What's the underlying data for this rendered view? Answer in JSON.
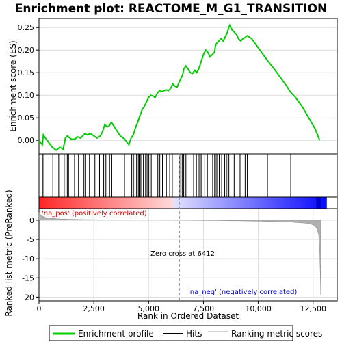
{
  "chart_data": {
    "type": "line",
    "title": "Enrichment plot: REACTOME_M_G1_TRANSITION",
    "top_panel": {
      "ylabel": "Enrichment score (ES)",
      "ylim": [
        -0.03,
        0.27
      ],
      "yticks": [
        0.0,
        0.05,
        0.1,
        0.15,
        0.2,
        0.25
      ],
      "ytick_labels": [
        "0.00",
        "0.05",
        "0.10",
        "0.15",
        "0.20",
        "0.25"
      ],
      "series": [
        {
          "name": "Enrichment profile",
          "color": "#00cc00",
          "x": [
            0,
            150,
            200,
            250,
            400,
            600,
            800,
            950,
            1100,
            1200,
            1300,
            1400,
            1500,
            1650,
            1750,
            1900,
            2000,
            2100,
            2200,
            2350,
            2500,
            2650,
            2800,
            2900,
            3000,
            3100,
            3200,
            3300,
            3500,
            3700,
            3900,
            4100,
            4200,
            4300,
            4350,
            4400,
            4500,
            4600,
            4650,
            4700,
            4800,
            4900,
            5000,
            5100,
            5200,
            5300,
            5400,
            5500,
            5600,
            5700,
            5800,
            5900,
            6000,
            6100,
            6200,
            6300,
            6400,
            6500,
            6550,
            6600,
            6700,
            6800,
            6900,
            7000,
            7100,
            7200,
            7300,
            7400,
            7500,
            7600,
            7700,
            7800,
            7900,
            8000,
            8050,
            8100,
            8200,
            8300,
            8400,
            8500,
            8600,
            8650,
            8700,
            8800,
            8900,
            9000,
            9100,
            9200,
            9300,
            9400,
            9500,
            9700,
            10000,
            10300,
            10450,
            10700,
            11000,
            11300,
            11450,
            11700,
            12000,
            12300,
            12600,
            12800
          ],
          "y": [
            0.0,
            -0.01,
            0.012,
            0.008,
            -0.002,
            -0.015,
            -0.022,
            -0.015,
            -0.02,
            0.005,
            0.01,
            0.005,
            0.002,
            0.003,
            0.008,
            0.005,
            0.01,
            0.015,
            0.012,
            0.015,
            0.01,
            0.005,
            0.01,
            0.02,
            0.035,
            0.03,
            0.032,
            0.04,
            0.025,
            0.01,
            0.003,
            -0.01,
            0.005,
            0.012,
            0.02,
            0.028,
            0.04,
            0.055,
            0.06,
            0.068,
            0.075,
            0.085,
            0.095,
            0.1,
            0.098,
            0.095,
            0.105,
            0.11,
            0.108,
            0.11,
            0.112,
            0.11,
            0.115,
            0.125,
            0.12,
            0.118,
            0.13,
            0.14,
            0.145,
            0.158,
            0.165,
            0.158,
            0.15,
            0.148,
            0.155,
            0.15,
            0.16,
            0.175,
            0.19,
            0.2,
            0.195,
            0.185,
            0.19,
            0.195,
            0.21,
            0.215,
            0.22,
            0.225,
            0.22,
            0.23,
            0.24,
            0.25,
            0.255,
            0.245,
            0.24,
            0.235,
            0.225,
            0.22,
            0.225,
            0.228,
            0.232,
            0.225,
            0.205,
            0.185,
            0.175,
            0.16,
            0.14,
            0.12,
            0.108,
            0.095,
            0.075,
            0.05,
            0.025,
            0.0
          ]
        }
      ],
      "hits_label": "Hits",
      "hits_x": [
        180,
        230,
        630,
        900,
        1150,
        1230,
        1290,
        1350,
        1620,
        1800,
        2050,
        2130,
        2300,
        2550,
        2760,
        2950,
        3050,
        3220,
        3320,
        3900,
        4230,
        4310,
        4380,
        4450,
        4530,
        4570,
        4620,
        4680,
        4760,
        4860,
        4930,
        5010,
        5120,
        5420,
        5510,
        5630,
        5810,
        5960,
        6080,
        6160,
        6420,
        6530,
        6600,
        6700,
        7050,
        7180,
        7300,
        7360,
        7420,
        7560,
        7680,
        7920,
        8010,
        8080,
        8140,
        8220,
        8330,
        8470,
        8550,
        8620,
        8660,
        8900,
        9170,
        9400,
        9500,
        10420,
        11480
      ]
    },
    "bottom_panel": {
      "ylabel": "Ranked list metric (PreRanked)",
      "xlabel": "Rank in Ordered Dataset",
      "ylim": [
        -21,
        3
      ],
      "yticks": [
        0,
        -5,
        -10,
        -15,
        -20
      ],
      "ytick_labels": [
        "0",
        "-5",
        "-10",
        "-15",
        "-20"
      ],
      "xlim": [
        0,
        13600
      ],
      "xticks": [
        0,
        2500,
        5000,
        7500,
        10000,
        12500
      ],
      "xtick_labels": [
        "0",
        "2,500",
        "5,000",
        "7,500",
        "10,000",
        "12,500"
      ],
      "series": [
        {
          "name": "Ranking metric scores",
          "color": "#b0b0b0",
          "x": [
            0,
            100,
            300,
            600,
            1000,
            2000,
            4000,
            6412,
            8000,
            10000,
            11500,
            12200,
            12500,
            12650,
            12750,
            12800,
            12850
          ],
          "y": [
            2.0,
            1.2,
            0.7,
            0.45,
            0.3,
            0.15,
            0.05,
            0.0,
            -0.1,
            -0.25,
            -0.5,
            -0.8,
            -1.2,
            -2.0,
            -3.5,
            -8.0,
            -19.5
          ]
        }
      ],
      "annotations": {
        "pos_label": "'na_pos' (positively correlated)",
        "neg_label": "'na_neg' (negatively correlated)",
        "zero_cross": "Zero cross at 6412",
        "zero_cross_x": 6412
      }
    },
    "xlim": [
      0,
      13600
    ],
    "legend": {
      "placement": "bottom",
      "entries": [
        "Enrichment profile",
        "Hits",
        "Ranking metric scores"
      ]
    },
    "colors": {
      "profile": "#00cc00",
      "pos_bar": "#ff0000",
      "neg_bar": "#0000ff",
      "pos_text": "#cc0000",
      "neg_text": "#0000cc",
      "grid": "#dddddd"
    }
  }
}
